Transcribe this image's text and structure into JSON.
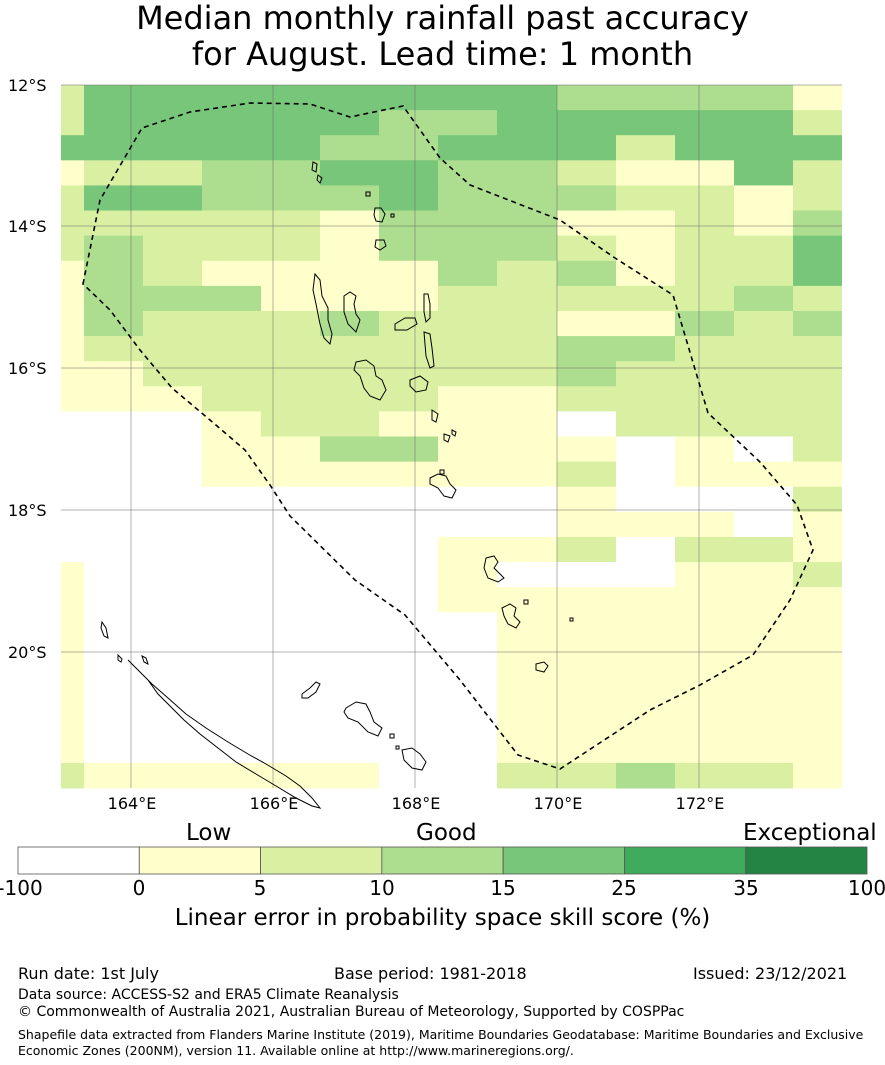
{
  "title": {
    "line1": "Median monthly rainfall past accuracy",
    "line2": "for August. Lead time: 1 month"
  },
  "map": {
    "lat_labels": [
      "12°S",
      "14°S",
      "16°S",
      "18°S",
      "20°S"
    ],
    "lon_labels": [
      "164°E",
      "166°E",
      "168°E",
      "170°E",
      "172°E"
    ],
    "lon_range": [
      163.0,
      174.0
    ],
    "lat_range": [
      -21.9,
      -12.0
    ],
    "boundary_line_style": "dashed",
    "colors": [
      "#ffffff",
      "#ffffcc",
      "#d9f0a3",
      "#addd8e",
      "#78c679",
      "#41ab5d",
      "#238443"
    ]
  },
  "colorbar": {
    "categories": [
      "Low",
      "Good",
      "Exceptional"
    ],
    "ticks": [
      "-100",
      "0",
      "5",
      "10",
      "15",
      "25",
      "35",
      "100"
    ],
    "label": "Linear error in probability space skill score (%)",
    "colors": [
      "#ffffff",
      "#ffffcc",
      "#d9f0a3",
      "#addd8e",
      "#78c679",
      "#41ab5d",
      "#238443"
    ]
  },
  "footer": {
    "run_date": "Run date: 1st July",
    "base_period": "Base period: 1981-2018",
    "issued": "Issued: 23/12/2021",
    "data_source": "Data source: ACCESS-S2 and ERA5 Climate Reanalysis",
    "copyright": "© Commonwealth of Australia 2021, Australian Bureau of Meteorology, Supported by COSPPac",
    "shapefile": "Shapefile data extracted from Flanders Marine Institute (2019), Maritime Boundaries Geodatabase: Maritime Boundaries and Exclusive Economic Zones (200NM), version 11. Available online at http://www.marineregions.org/."
  }
}
